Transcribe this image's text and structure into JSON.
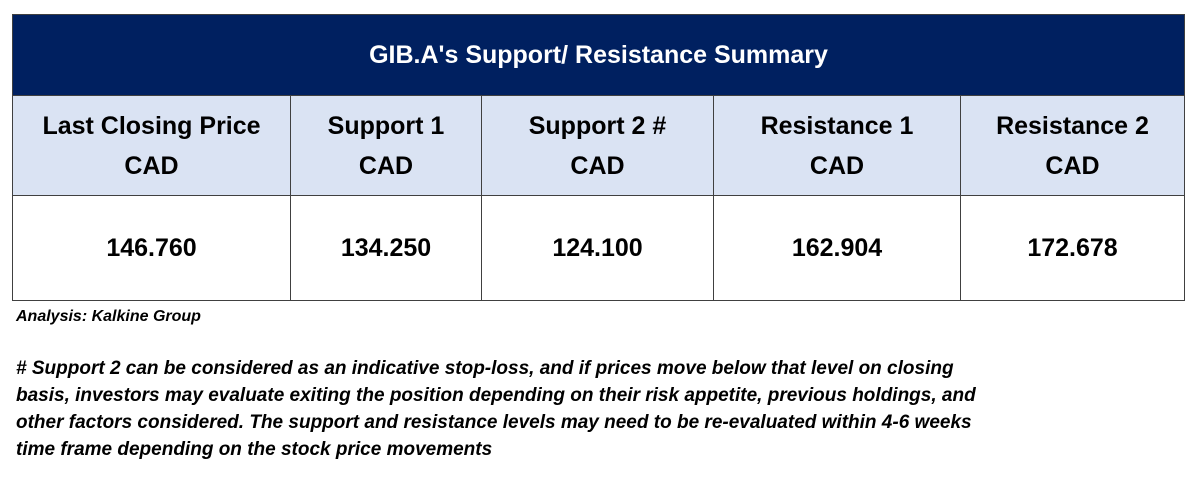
{
  "table": {
    "title": "GIB.A's Support/  Resistance Summary",
    "columns": [
      {
        "label": "Last Closing Price",
        "unit": "CAD"
      },
      {
        "label": "Support 1",
        "unit": "CAD"
      },
      {
        "label": "Support 2 #",
        "unit": "CAD"
      },
      {
        "label": "Resistance 1",
        "unit": "CAD"
      },
      {
        "label": "Resistance 2",
        "unit": "CAD"
      }
    ],
    "values": [
      "146.760",
      "134.250",
      "124.100",
      "162.904",
      "172.678"
    ]
  },
  "source": "Analysis: Kalkine Group",
  "note_lines": [
    "# Support 2 can be considered as an indicative stop-loss, and if prices move below that level on closing",
    "basis, investors may evaluate exiting the position depending on their risk appetite, previous holdings, and",
    "other factors considered. The support and resistance levels may need to be re-evaluated within 4-6 weeks",
    "time frame depending on the stock price movements"
  ]
}
